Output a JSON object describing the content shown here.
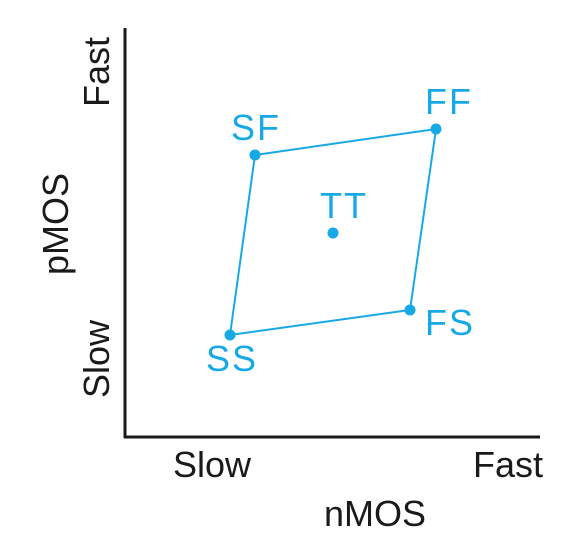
{
  "colors": {
    "axis": "#1a1a1a",
    "accent": "#17a9e6",
    "background": "#ffffff"
  },
  "x_axis": {
    "label": "nMOS",
    "tick_low": "Slow",
    "tick_high": "Fast"
  },
  "y_axis": {
    "label": "pMOS",
    "tick_low": "Slow",
    "tick_high": "Fast"
  },
  "corners": {
    "ss": "SS",
    "sf": "SF",
    "ff": "FF",
    "fs": "FS",
    "tt": "TT"
  }
}
